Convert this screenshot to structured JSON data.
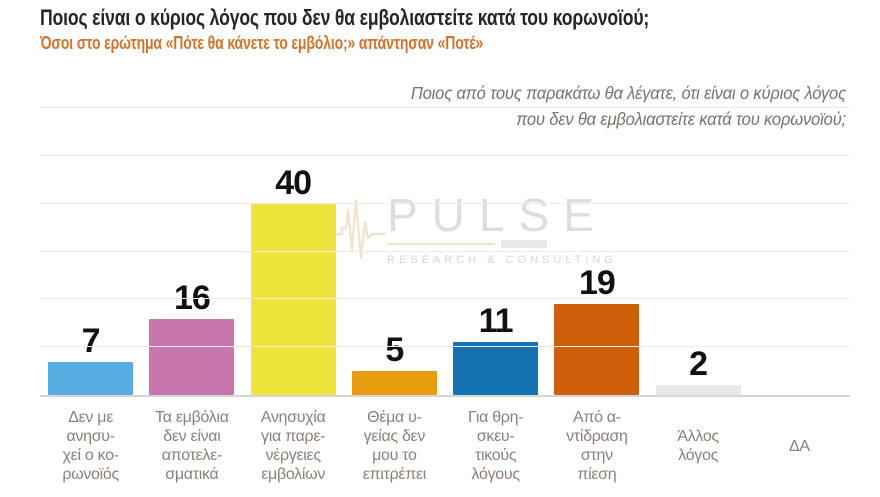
{
  "header": {
    "title": "Ποιος είναι ο κύριος λόγος που δεν θα εμβολιαστείτε κατά του κορωνοϊού;",
    "subtitle": "Όσοι στο ερώτημα «Πότε θα κάνετε το εμβόλιο;» απάντησαν «Ποτέ»"
  },
  "question_note": {
    "line1": "Ποιος από τους παρακάτω θα λέγατε, ότι είναι ο κύριος λόγος",
    "line2": "που δεν θα εμβολιαστείτε κατά του κορωνοϊού;"
  },
  "watermark": {
    "name": "PULSE",
    "tagline": "RESEARCH & CONSULTING",
    "icon": "pulse-waveform-icon",
    "accent_color": "#e7cba2",
    "text_color": "#c3c3c3"
  },
  "chart_data": {
    "type": "bar",
    "title": "Ποιος είναι ο κύριος λόγος που δεν θα εμβολιαστείτε κατά του κορωνοϊού;",
    "categories": [
      "Δεν με ανησυχεί ο κορωνοϊός",
      "Τα εμβόλια δεν είναι αποτελεσματικά",
      "Ανησυχία για παρενέργειες εμβολίων",
      "Θέμα υγείας δεν μου το επιτρέπει",
      "Για θρησκευτικούς λόγους",
      "Από αντίδραση στην πίεση",
      "Άλλος λόγος",
      "ΔΑ"
    ],
    "category_display": [
      [
        "Δεν με",
        "ανησυ-",
        "χεί ο κο-",
        "ρωνοϊός"
      ],
      [
        "Τα εμβόλια",
        "δεν είναι",
        "αποτελε-",
        "σματικά"
      ],
      [
        "Ανησυχία",
        "για παρε-",
        "νέργειες",
        "εμβολίων"
      ],
      [
        "Θέμα υ-",
        "γείας δεν",
        "μου το",
        "επιτρέπει"
      ],
      [
        "Για θρη-",
        "σκευ-",
        "τικούς",
        "λόγους"
      ],
      [
        "Από α-",
        "ντίδραση",
        "στην",
        "πίεση"
      ],
      [
        "Άλλος",
        "λόγος"
      ],
      [
        "ΔΑ"
      ]
    ],
    "values": [
      7,
      16,
      40,
      5,
      11,
      19,
      2,
      null
    ],
    "bar_colors": [
      "#57ade2",
      "#c777ad",
      "#ede33b",
      "#e89d10",
      "#1572b1",
      "#cf600b",
      "#e8e8e6",
      "#e8e8e6"
    ],
    "xlabel": "",
    "ylabel": "",
    "ylim": [
      0,
      60
    ],
    "gridline_step": 10,
    "grid": true,
    "legend": false,
    "value_label_color": "#111111",
    "grid_color": "#ececec",
    "baseline_color": "#d5d5d5"
  }
}
